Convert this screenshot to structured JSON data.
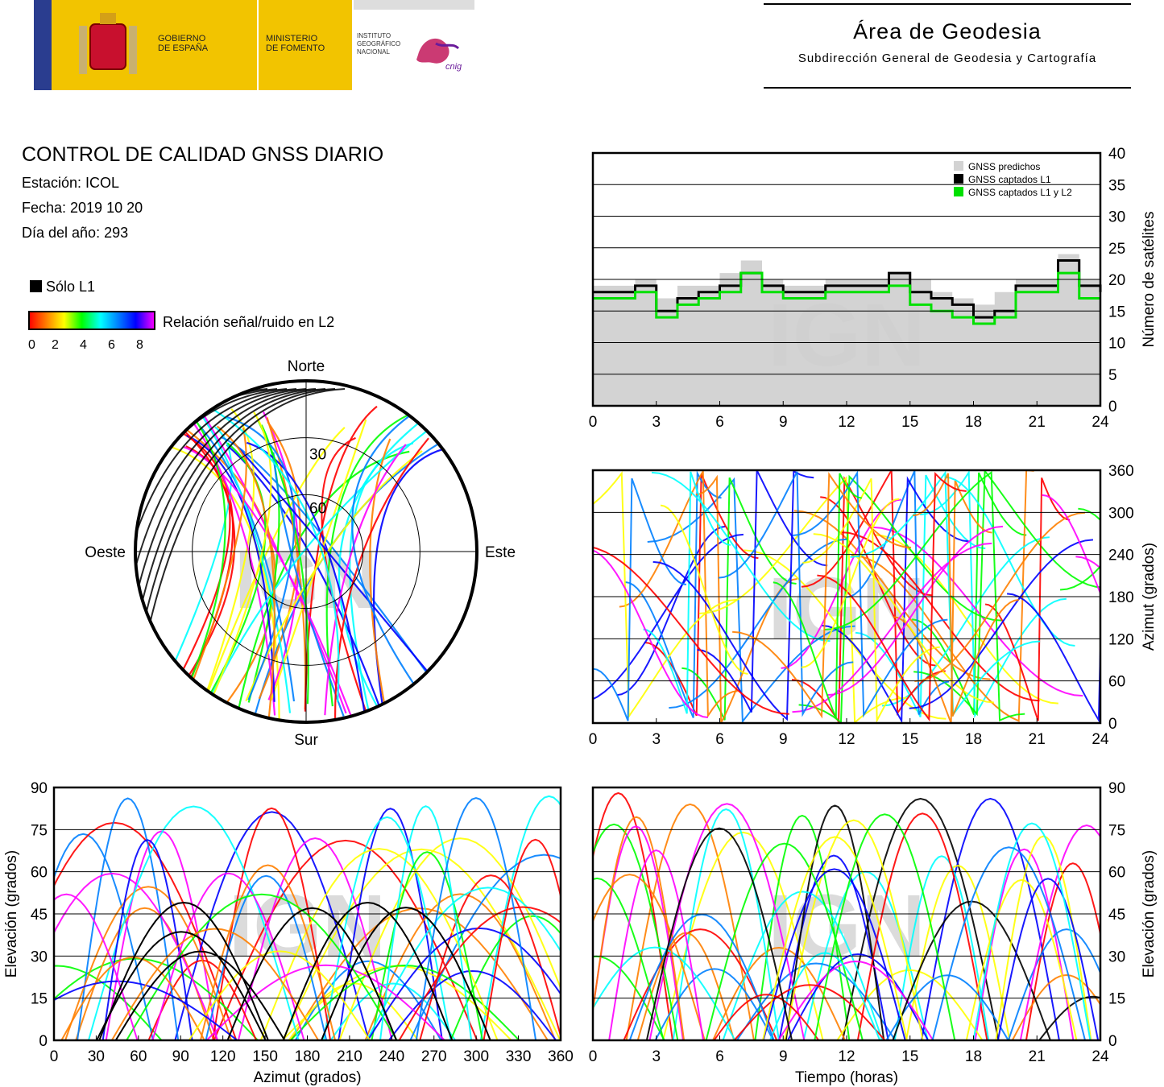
{
  "header": {
    "gov_line1": "GOBIERNO",
    "gov_line2": "DE ESPAÑA",
    "min_line1": "MINISTERIO",
    "min_line2": "DE FOMENTO",
    "ign_line1": "INSTITUTO",
    "ign_line2": "GEOGRÁFICO",
    "ign_line3": "NACIONAL",
    "ign_mark": "cnig",
    "area_title": "Área de Geodesia",
    "area_subtitle": "Subdirección General de Geodesia y Cartografía"
  },
  "info": {
    "title": "CONTROL DE CALIDAD GNSS DIARIO",
    "station": "Estación: ICOL",
    "date": "Fecha: 2019 10 20",
    "doy": "Día del año: 293"
  },
  "legend": {
    "l1_only": "Sólo L1",
    "snr_label": "Relación señal/ruido en L2",
    "snr_ticks": [
      "0",
      "2",
      "4",
      "6",
      "8"
    ]
  },
  "watermark": "IGN",
  "colors": {
    "predicted": "#d3d3d3",
    "l1": "#000000",
    "l1l2": "#00e000",
    "snr_scale": [
      "#ff0000",
      "#ff8000",
      "#ffff00",
      "#00ff00",
      "#00ffff",
      "#0080ff",
      "#0000ff",
      "#ff00ff"
    ]
  },
  "chart_data": [
    {
      "type": "area",
      "id": "satellites",
      "ylabel": "Número de satélites",
      "xlim": [
        0,
        24
      ],
      "ylim": [
        0,
        40
      ],
      "xticks": [
        "0",
        "3",
        "6",
        "9",
        "12",
        "15",
        "18",
        "21",
        "24"
      ],
      "yticks": [
        "0",
        "5",
        "10",
        "15",
        "20",
        "25",
        "30",
        "35",
        "40"
      ],
      "grid": true,
      "legend_position": "top-right",
      "series": [
        {
          "name": "GNSS predichos",
          "x": [
            0,
            1,
            2,
            3,
            4,
            5,
            6,
            7,
            8,
            9,
            10,
            11,
            12,
            13,
            14,
            15,
            16,
            17,
            18,
            19,
            20,
            21,
            22,
            23,
            24
          ],
          "values": [
            19,
            19,
            20,
            17,
            19,
            19,
            21,
            23,
            20,
            19,
            19,
            20,
            20,
            20,
            21,
            20,
            18,
            17,
            16,
            18,
            20,
            20,
            24,
            20,
            19
          ]
        },
        {
          "name": "GNSS captados L1",
          "x": [
            0,
            1,
            2,
            3,
            4,
            5,
            6,
            7,
            8,
            9,
            10,
            11,
            12,
            13,
            14,
            15,
            16,
            17,
            18,
            19,
            20,
            21,
            22,
            23,
            24
          ],
          "values": [
            18,
            18,
            19,
            15,
            17,
            18,
            19,
            21,
            19,
            18,
            18,
            19,
            19,
            19,
            21,
            18,
            17,
            16,
            14,
            15,
            19,
            19,
            23,
            19,
            18
          ]
        },
        {
          "name": "GNSS captados L1 y L2",
          "x": [
            0,
            1,
            2,
            3,
            4,
            5,
            6,
            7,
            8,
            9,
            10,
            11,
            12,
            13,
            14,
            15,
            16,
            17,
            18,
            19,
            20,
            21,
            22,
            23,
            24
          ],
          "values": [
            17,
            17,
            18,
            14,
            16,
            17,
            18,
            21,
            18,
            17,
            17,
            18,
            18,
            18,
            19,
            16,
            15,
            14,
            13,
            14,
            18,
            18,
            21,
            17,
            17
          ]
        }
      ]
    },
    {
      "type": "scatter",
      "id": "azimuth-time",
      "ylabel": "Azimut (grados)",
      "xlim": [
        0,
        24
      ],
      "ylim": [
        0,
        360
      ],
      "xticks": [
        "0",
        "3",
        "6",
        "9",
        "12",
        "15",
        "18",
        "21",
        "24"
      ],
      "yticks": [
        "0",
        "60",
        "120",
        "180",
        "240",
        "300",
        "360"
      ],
      "grid": true
    },
    {
      "type": "scatter",
      "id": "skyplot",
      "labels": {
        "north": "Norte",
        "south": "Sur",
        "east": "Este",
        "west": "Oeste"
      },
      "rings": [
        "30",
        "60"
      ]
    },
    {
      "type": "scatter",
      "id": "elevation-azimuth",
      "xlabel": "Azimut (grados)",
      "ylabel": "Elevación (grados)",
      "xlim": [
        0,
        360
      ],
      "ylim": [
        0,
        90
      ],
      "xticks": [
        "0",
        "30",
        "60",
        "90",
        "120",
        "150",
        "180",
        "210",
        "240",
        "270",
        "300",
        "330",
        "360"
      ],
      "yticks": [
        "0",
        "15",
        "30",
        "45",
        "60",
        "75",
        "90"
      ],
      "grid": true
    },
    {
      "type": "scatter",
      "id": "elevation-time",
      "xlabel": "Tiempo (horas)",
      "ylabel": "Elevación (grados)",
      "xlim": [
        0,
        24
      ],
      "ylim": [
        0,
        90
      ],
      "xticks": [
        "0",
        "3",
        "6",
        "9",
        "12",
        "15",
        "18",
        "21",
        "24"
      ],
      "yticks": [
        "0",
        "15",
        "30",
        "45",
        "60",
        "75",
        "90"
      ],
      "grid": true,
      "series": [
        {
          "name": "",
          "peaks": [
            [
              1.2,
              88
            ],
            [
              4.6,
              84
            ],
            [
              7.1,
              74
            ],
            [
              9.9,
              80
            ],
            [
              12.9,
              60
            ],
            [
              15.5,
              86
            ],
            [
              18.8,
              86
            ],
            [
              20.4,
              68
            ],
            [
              22.7,
              63
            ]
          ]
        }
      ]
    }
  ]
}
